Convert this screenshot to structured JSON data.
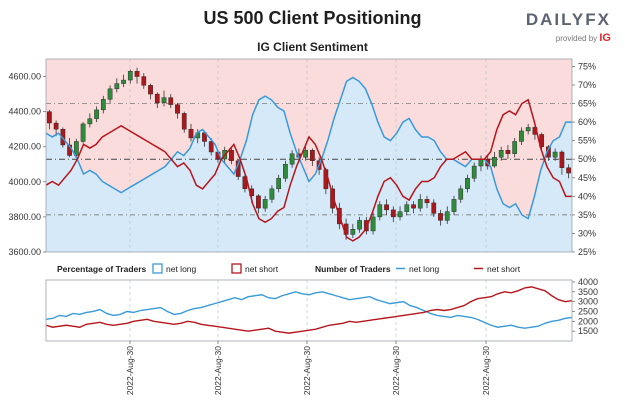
{
  "header": {
    "title": "US 500 Client Positioning",
    "subtitle": "IG Client Sentiment",
    "brand_logo": "DAILYFX",
    "brand_provided_by": "provided by",
    "brand_ig": "IG"
  },
  "legend": {
    "pct_title": "Percentage of Traders",
    "pct_long": "net long",
    "pct_short": "net short",
    "num_title": "Number of Traders",
    "num_long": "net long",
    "num_short": "net short"
  },
  "colors": {
    "long": "#3a9ad9",
    "short": "#b5161c",
    "long_fill": "#d6e9f8",
    "short_fill": "#fbdcdc",
    "candle_up": "#2f8a3b",
    "candle_down": "#a8181c"
  },
  "chart_data": [
    {
      "type": "line",
      "name": "price-and-percentage",
      "xlabels": [
        "2022-Aug-30",
        "2022-Aug-30",
        "2022-Aug-30",
        "2022-Aug-30",
        "2022-Aug-30"
      ],
      "price_ticks": [
        "4600.00",
        "4400.00",
        "4200.00",
        "4000.00",
        "3800.00",
        "3600.00"
      ],
      "price_ylim": [
        3600,
        4700
      ],
      "pct_ticks": [
        "75%",
        "70%",
        "65%",
        "60%",
        "55%",
        "50%",
        "45%",
        "40%",
        "35%",
        "30%",
        "25%"
      ],
      "pct_ylim": [
        25,
        77
      ],
      "reference_lines_pct": [
        65,
        50,
        35
      ],
      "candles": [
        [
          4400,
          4335,
          4410,
          4300
        ],
        [
          4335,
          4300,
          4350,
          4260
        ],
        [
          4300,
          4210,
          4310,
          4195
        ],
        [
          4210,
          4150,
          4250,
          4140
        ],
        [
          4150,
          4230,
          4245,
          4140
        ],
        [
          4230,
          4330,
          4340,
          4220
        ],
        [
          4330,
          4360,
          4390,
          4310
        ],
        [
          4360,
          4410,
          4430,
          4340
        ],
        [
          4410,
          4470,
          4490,
          4390
        ],
        [
          4470,
          4530,
          4550,
          4450
        ],
        [
          4530,
          4560,
          4590,
          4510
        ],
        [
          4560,
          4580,
          4610,
          4540
        ],
        [
          4580,
          4630,
          4640,
          4560
        ],
        [
          4630,
          4600,
          4650,
          4560
        ],
        [
          4600,
          4550,
          4620,
          4530
        ],
        [
          4550,
          4500,
          4560,
          4470
        ],
        [
          4500,
          4450,
          4510,
          4420
        ],
        [
          4450,
          4480,
          4520,
          4430
        ],
        [
          4480,
          4440,
          4500,
          4420
        ],
        [
          4440,
          4390,
          4450,
          4360
        ],
        [
          4390,
          4300,
          4400,
          4280
        ],
        [
          4300,
          4250,
          4330,
          4230
        ],
        [
          4250,
          4280,
          4300,
          4220
        ],
        [
          4280,
          4230,
          4290,
          4200
        ],
        [
          4230,
          4170,
          4250,
          4150
        ],
        [
          4170,
          4130,
          4180,
          4110
        ],
        [
          4130,
          4180,
          4200,
          4110
        ],
        [
          4180,
          4120,
          4200,
          4100
        ],
        [
          4120,
          4030,
          4130,
          4010
        ],
        [
          4030,
          3960,
          4040,
          3940
        ],
        [
          3960,
          3920,
          3980,
          3880
        ],
        [
          3920,
          3850,
          3930,
          3820
        ],
        [
          3850,
          3900,
          3920,
          3830
        ],
        [
          3900,
          3960,
          3980,
          3880
        ],
        [
          3960,
          4020,
          4040,
          3940
        ],
        [
          4020,
          4100,
          4120,
          4000
        ],
        [
          4100,
          4160,
          4180,
          4080
        ],
        [
          4160,
          4140,
          4190,
          4110
        ],
        [
          4140,
          4180,
          4200,
          4120
        ],
        [
          4180,
          4120,
          4190,
          4090
        ],
        [
          4120,
          4070,
          4140,
          4040
        ],
        [
          4070,
          3960,
          4080,
          3930
        ],
        [
          3960,
          3850,
          3980,
          3820
        ],
        [
          3850,
          3760,
          3880,
          3730
        ],
        [
          3760,
          3700,
          3790,
          3670
        ],
        [
          3700,
          3730,
          3760,
          3680
        ],
        [
          3730,
          3780,
          3800,
          3710
        ],
        [
          3780,
          3720,
          3800,
          3700
        ],
        [
          3720,
          3800,
          3830,
          3700
        ],
        [
          3800,
          3870,
          3890,
          3780
        ],
        [
          3870,
          3840,
          3900,
          3810
        ],
        [
          3840,
          3800,
          3860,
          3770
        ],
        [
          3800,
          3830,
          3860,
          3780
        ],
        [
          3830,
          3870,
          3890,
          3810
        ],
        [
          3870,
          3850,
          3890,
          3820
        ],
        [
          3850,
          3900,
          3930,
          3830
        ],
        [
          3900,
          3880,
          3920,
          3850
        ],
        [
          3880,
          3820,
          3900,
          3800
        ],
        [
          3820,
          3780,
          3840,
          3750
        ],
        [
          3780,
          3830,
          3860,
          3760
        ],
        [
          3830,
          3900,
          3920,
          3810
        ],
        [
          3900,
          3960,
          3980,
          3880
        ],
        [
          3960,
          4020,
          4040,
          3940
        ],
        [
          4020,
          4090,
          4110,
          4000
        ],
        [
          4090,
          4130,
          4150,
          4060
        ],
        [
          4130,
          4090,
          4150,
          4070
        ],
        [
          4090,
          4140,
          4170,
          4080
        ],
        [
          4140,
          4180,
          4200,
          4120
        ],
        [
          4180,
          4160,
          4210,
          4130
        ],
        [
          4160,
          4230,
          4250,
          4140
        ],
        [
          4230,
          4290,
          4310,
          4210
        ],
        [
          4290,
          4310,
          4330,
          4270
        ],
        [
          4310,
          4270,
          4320,
          4240
        ],
        [
          4270,
          4200,
          4280,
          4180
        ],
        [
          4200,
          4140,
          4210,
          4120
        ],
        [
          4140,
          4170,
          4190,
          4120
        ],
        [
          4170,
          4080,
          4180,
          4040
        ],
        [
          4080,
          4050,
          4100,
          4020
        ]
      ],
      "pct_long": [
        57,
        56,
        57,
        55,
        53,
        50,
        46,
        47,
        46,
        44,
        43,
        42,
        41,
        42,
        43,
        44,
        45,
        46,
        47,
        48,
        50,
        52,
        51,
        53,
        57,
        58,
        56,
        54,
        50,
        48,
        46,
        50,
        55,
        62,
        66,
        67,
        66,
        64,
        63,
        57,
        52,
        48,
        44,
        46,
        50,
        55,
        61,
        66,
        71,
        72,
        71,
        69,
        65,
        60,
        56,
        55,
        57,
        60,
        61,
        58,
        56,
        56,
        55,
        52,
        50,
        50,
        49,
        48,
        50,
        50,
        50,
        48,
        42,
        38,
        37,
        38,
        35,
        34,
        40,
        47,
        52,
        55,
        56,
        60,
        60
      ],
      "pct_short": [
        43,
        44,
        43,
        45,
        47,
        50,
        54,
        53,
        54,
        56,
        57,
        58,
        59,
        58,
        57,
        56,
        55,
        54,
        53,
        52,
        50,
        48,
        49,
        47,
        43,
        42,
        44,
        46,
        50,
        52,
        54,
        50,
        45,
        38,
        34,
        33,
        34,
        36,
        37,
        43,
        48,
        52,
        56,
        54,
        50,
        45,
        39,
        34,
        29,
        28,
        29,
        31,
        35,
        40,
        44,
        45,
        43,
        40,
        39,
        42,
        44,
        44,
        45,
        48,
        50,
        50,
        51,
        52,
        50,
        50,
        50,
        52,
        58,
        62,
        63,
        62,
        65,
        66,
        60,
        53,
        48,
        45,
        44,
        40,
        40
      ]
    },
    {
      "type": "line",
      "name": "number-of-traders",
      "ticks": [
        "4000",
        "3500",
        "3000",
        "2500",
        "2000",
        "1500"
      ],
      "ylim": [
        1000,
        4100
      ],
      "net_long": [
        2100,
        2150,
        2300,
        2250,
        2400,
        2350,
        2450,
        2500,
        2600,
        2400,
        2300,
        2350,
        2500,
        2450,
        2550,
        2600,
        2650,
        2700,
        2500,
        2350,
        2400,
        2550,
        2650,
        2700,
        2800,
        2900,
        3000,
        3100,
        3200,
        3100,
        3250,
        3300,
        3350,
        3200,
        3150,
        3300,
        3400,
        3500,
        3400,
        3350,
        3450,
        3500,
        3400,
        3300,
        3200,
        3100,
        3150,
        3200,
        3250,
        3100,
        3000,
        2900,
        2950,
        3000,
        2800,
        2700,
        2550,
        2400,
        2300,
        2250,
        2200,
        2300,
        2250,
        2200,
        2100,
        1950,
        1800,
        1700,
        1750,
        1800,
        1700,
        1650,
        1700,
        1750,
        1900,
        2000,
        2050,
        2150,
        2200
      ],
      "net_short": [
        1800,
        1700,
        1750,
        1800,
        1750,
        1700,
        1850,
        1900,
        1950,
        1850,
        1800,
        1850,
        1900,
        2000,
        2050,
        2100,
        2000,
        1950,
        1900,
        1850,
        1900,
        2000,
        1950,
        1850,
        1800,
        1750,
        1700,
        1650,
        1600,
        1550,
        1500,
        1550,
        1600,
        1650,
        1500,
        1450,
        1400,
        1450,
        1500,
        1550,
        1600,
        1700,
        1800,
        1850,
        1900,
        2000,
        1950,
        2000,
        2050,
        2100,
        2150,
        2200,
        2250,
        2300,
        2350,
        2400,
        2450,
        2550,
        2600,
        2550,
        2600,
        2700,
        2800,
        3000,
        3150,
        3200,
        3250,
        3400,
        3500,
        3450,
        3550,
        3700,
        3750,
        3650,
        3550,
        3300,
        3100,
        3000,
        3050
      ]
    }
  ]
}
